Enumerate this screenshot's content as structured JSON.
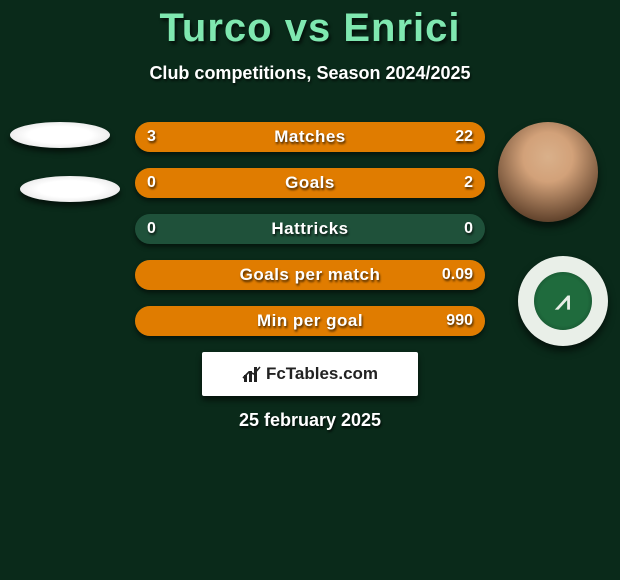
{
  "title_color": "#7fe8b0",
  "text_color": "#ffffff",
  "bg_color": "#0a2a1a",
  "track_color": "#1f513a",
  "bar_color": "#e07c00",
  "header": {
    "player_a": "Turco",
    "vs": "vs",
    "player_b": "Enrici",
    "subtitle": "Club competitions, Season 2024/2025"
  },
  "rows": [
    {
      "label": "Matches",
      "left": "3",
      "right": "22",
      "left_pct": 12,
      "right_pct": 88
    },
    {
      "label": "Goals",
      "left": "0",
      "right": "2",
      "left_pct": 0,
      "right_pct": 100
    },
    {
      "label": "Hattricks",
      "left": "0",
      "right": "0",
      "left_pct": 0,
      "right_pct": 0
    },
    {
      "label": "Goals per match",
      "left": "",
      "right": "0.09",
      "left_pct": 0,
      "right_pct": 100
    },
    {
      "label": "Min per goal",
      "left": "",
      "right": "990",
      "left_pct": 0,
      "right_pct": 100
    }
  ],
  "footer": {
    "brand": "FcTables.com",
    "date": "25 february 2025"
  },
  "avatars": {
    "left_shape": "ellipse-white",
    "right_photo": "player-headshot",
    "right_badge": "club-crest-avellino"
  }
}
